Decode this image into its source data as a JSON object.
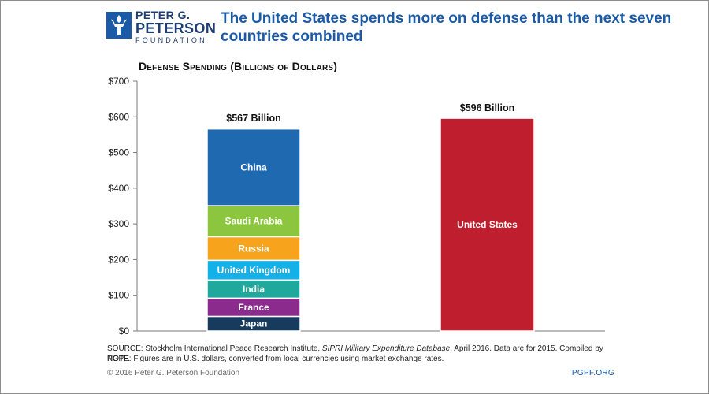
{
  "header": {
    "logo_line1": "PETER G.",
    "logo_line2": "PETERSON",
    "logo_line3": "FOUNDATION",
    "headline": "The United States spends more on defense than the next seven countries combined"
  },
  "colors": {
    "brand_blue": "#1a5aa6",
    "china": "#1f69b0",
    "saudi_arabia": "#8cc63f",
    "russia": "#f7a31c",
    "united_kingdom": "#14b0e8",
    "india": "#1fa89b",
    "france": "#8b2b8e",
    "japan": "#173b5c",
    "united_states": "#be1e2d"
  },
  "chart_data": {
    "type": "bar",
    "title": "Defense Spending (Billions of Dollars)",
    "ylim": [
      0,
      700
    ],
    "yticks": [
      "$0",
      "$100",
      "$200",
      "$300",
      "$400",
      "$500",
      "$600",
      "$700"
    ],
    "ytick_values": [
      0,
      100,
      200,
      300,
      400,
      500,
      600,
      700
    ],
    "grid": false,
    "bars": [
      {
        "total_label": "$567 Billion",
        "total": 567,
        "stacked": true,
        "segments": [
          {
            "name": "Japan",
            "value": 41,
            "color_key": "japan"
          },
          {
            "name": "France",
            "value": 51,
            "color_key": "france"
          },
          {
            "name": "India",
            "value": 51,
            "color_key": "india"
          },
          {
            "name": "United Kingdom",
            "value": 55,
            "color_key": "united_kingdom"
          },
          {
            "name": "Russia",
            "value": 66,
            "color_key": "russia"
          },
          {
            "name": "Saudi Arabia",
            "value": 87,
            "color_key": "saudi_arabia"
          },
          {
            "name": "China",
            "value": 215,
            "color_key": "china"
          }
        ]
      },
      {
        "total_label": "$596 Billion",
        "total": 596,
        "stacked": false,
        "segments": [
          {
            "name": "United States",
            "value": 596,
            "color_key": "united_states"
          }
        ]
      }
    ]
  },
  "footer": {
    "source_prefix": "SOURCE: Stockholm International Peace Research Institute, ",
    "source_italic": "SIPRI Military Expenditure Database",
    "source_suffix": ", April 2016. Data are for 2015. Compiled by PGPF.",
    "note": "NOTE: Figures are in U.S. dollars, converted from local currencies using market exchange rates.",
    "copyright": "© 2016 Peter G. Peterson Foundation",
    "site": "PGPF.ORG"
  }
}
